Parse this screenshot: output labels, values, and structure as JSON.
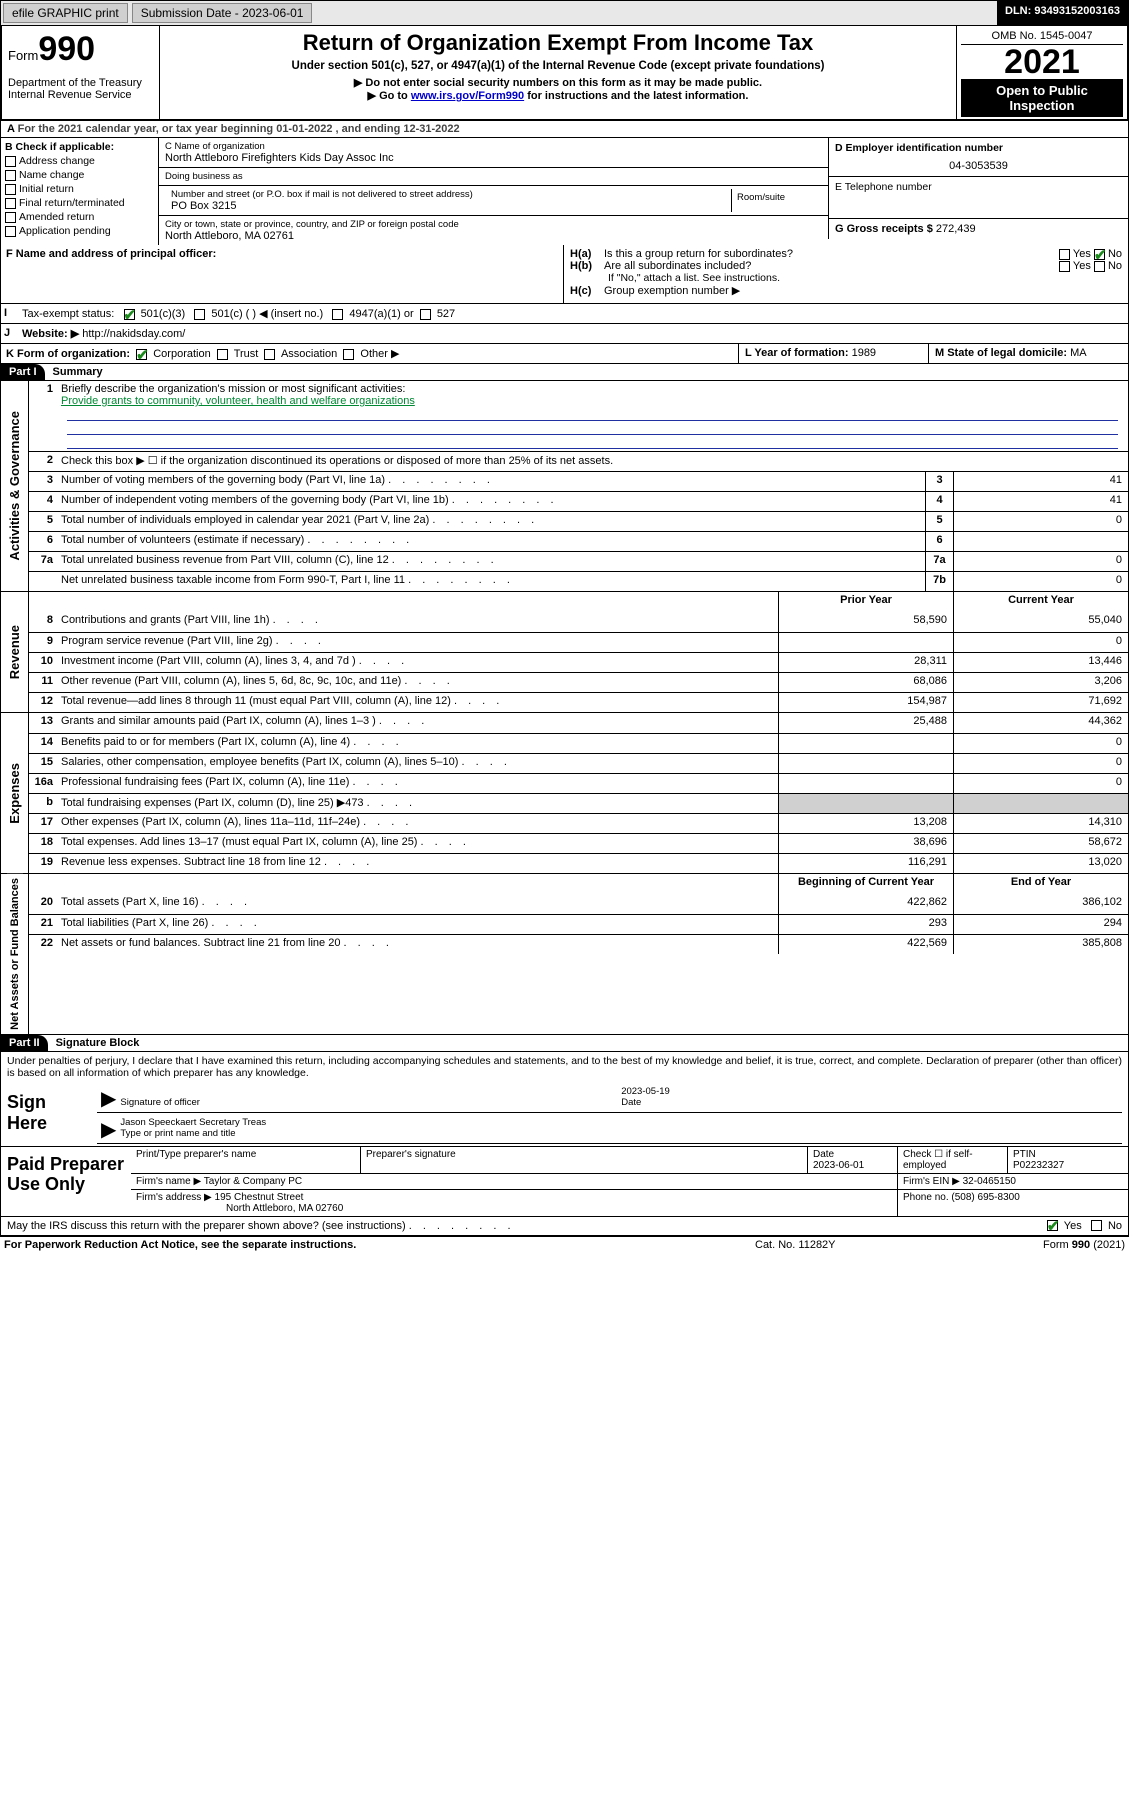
{
  "topbar": {
    "efile_label": "efile GRAPHIC print",
    "submission_label": "Submission Date - 2023-06-01",
    "dln_label": "DLN: 93493152003163"
  },
  "header": {
    "form_label": "Form",
    "form_number": "990",
    "title": "Return of Organization Exempt From Income Tax",
    "subtitle": "Under section 501(c), 527, or 4947(a)(1) of the Internal Revenue Code (except private foundations)",
    "note1": "▶ Do not enter social security numbers on this form as it may be made public.",
    "note2_pre": "▶ Go to ",
    "note2_link": "www.irs.gov/Form990",
    "note2_post": " for instructions and the latest information.",
    "dept": "Department of the Treasury",
    "irs": "Internal Revenue Service",
    "omb": "OMB No. 1545-0047",
    "year": "2021",
    "open": "Open to Public Inspection"
  },
  "rowA": "For the 2021 calendar year, or tax year beginning 01-01-2022   , and ending 12-31-2022",
  "boxB": {
    "label": "B Check if applicable:",
    "items": [
      "Address change",
      "Name change",
      "Initial return",
      "Final return/terminated",
      "Amended return",
      "Application pending"
    ]
  },
  "boxC": {
    "name_label": "C Name of organization",
    "name": "North Attleboro Firefighters Kids Day Assoc Inc",
    "dba_label": "Doing business as",
    "dba": "",
    "addr_label": "Number and street (or P.O. box if mail is not delivered to street address)",
    "room_label": "Room/suite",
    "addr": "PO Box 3215",
    "city_label": "City or town, state or province, country, and ZIP or foreign postal code",
    "city": "North Attleboro, MA  02761"
  },
  "boxD": {
    "label": "D Employer identification number",
    "value": "04-3053539"
  },
  "boxE": {
    "label": "E Telephone number",
    "value": ""
  },
  "boxG": {
    "label": "G Gross receipts $",
    "value": "272,439"
  },
  "boxF": {
    "label": "F  Name and address of principal officer:",
    "value": ""
  },
  "boxH": {
    "a_label": "Is this a group return for subordinates?",
    "a_yes": "Yes",
    "a_no": "No",
    "a_checked": "no",
    "b_label": "Are all subordinates included?",
    "b_yes": "Yes",
    "b_no": "No",
    "b_note": "If \"No,\" attach a list. See instructions.",
    "c_label": "Group exemption number ▶"
  },
  "boxI": {
    "label": "Tax-exempt status:",
    "opts": [
      "501(c)(3)",
      "501(c) (  ) ◀ (insert no.)",
      "4947(a)(1) or",
      "527"
    ],
    "checked": 0
  },
  "boxJ": {
    "label": "Website: ▶",
    "value": "http://nakidsday.com/"
  },
  "boxK": {
    "label": "K Form of organization:",
    "opts": [
      "Corporation",
      "Trust",
      "Association",
      "Other ▶"
    ],
    "checked": 0
  },
  "boxL": {
    "label": "L Year of formation:",
    "value": "1989"
  },
  "boxM": {
    "label": "M State of legal domicile:",
    "value": "MA"
  },
  "part1": {
    "tag": "Part I",
    "title": "Summary"
  },
  "summary": {
    "gov_label": "Activities & Governance",
    "rev_label": "Revenue",
    "exp_label": "Expenses",
    "net_label": "Net Assets or Fund Balances",
    "line1_label": "Briefly describe the organization's mission or most significant activities:",
    "line1_text": "Provide grants to community, volunteer, health and welfare organizations",
    "line2_label": "Check this box ▶ ☐  if the organization discontinued its operations or disposed of more than 25% of its net assets.",
    "rows_gov": [
      {
        "n": "3",
        "d": "Number of voting members of the governing body (Part VI, line 1a)",
        "box": "3",
        "v": "41"
      },
      {
        "n": "4",
        "d": "Number of independent voting members of the governing body (Part VI, line 1b)",
        "box": "4",
        "v": "41"
      },
      {
        "n": "5",
        "d": "Total number of individuals employed in calendar year 2021 (Part V, line 2a)",
        "box": "5",
        "v": "0"
      },
      {
        "n": "6",
        "d": "Total number of volunteers (estimate if necessary)",
        "box": "6",
        "v": ""
      },
      {
        "n": "7a",
        "d": "Total unrelated business revenue from Part VIII, column (C), line 12",
        "box": "7a",
        "v": "0"
      },
      {
        "n": "",
        "d": "Net unrelated business taxable income from Form 990-T, Part I, line 11",
        "box": "7b",
        "v": "0"
      }
    ],
    "col_prior": "Prior Year",
    "col_current": "Current Year",
    "col_begin": "Beginning of Current Year",
    "col_end": "End of Year",
    "rows_rev": [
      {
        "n": "8",
        "d": "Contributions and grants (Part VIII, line 1h)",
        "p": "58,590",
        "c": "55,040"
      },
      {
        "n": "9",
        "d": "Program service revenue (Part VIII, line 2g)",
        "p": "",
        "c": "0"
      },
      {
        "n": "10",
        "d": "Investment income (Part VIII, column (A), lines 3, 4, and 7d )",
        "p": "28,311",
        "c": "13,446"
      },
      {
        "n": "11",
        "d": "Other revenue (Part VIII, column (A), lines 5, 6d, 8c, 9c, 10c, and 11e)",
        "p": "68,086",
        "c": "3,206"
      },
      {
        "n": "12",
        "d": "Total revenue—add lines 8 through 11 (must equal Part VIII, column (A), line 12)",
        "p": "154,987",
        "c": "71,692"
      }
    ],
    "rows_exp": [
      {
        "n": "13",
        "d": "Grants and similar amounts paid (Part IX, column (A), lines 1–3 )",
        "p": "25,488",
        "c": "44,362"
      },
      {
        "n": "14",
        "d": "Benefits paid to or for members (Part IX, column (A), line 4)",
        "p": "",
        "c": "0"
      },
      {
        "n": "15",
        "d": "Salaries, other compensation, employee benefits (Part IX, column (A), lines 5–10)",
        "p": "",
        "c": "0"
      },
      {
        "n": "16a",
        "d": "Professional fundraising fees (Part IX, column (A), line 11e)",
        "p": "",
        "c": "0"
      },
      {
        "n": "b",
        "d": "Total fundraising expenses (Part IX, column (D), line 25) ▶473",
        "p": "shade",
        "c": "shade"
      },
      {
        "n": "17",
        "d": "Other expenses (Part IX, column (A), lines 11a–11d, 11f–24e)",
        "p": "13,208",
        "c": "14,310"
      },
      {
        "n": "18",
        "d": "Total expenses. Add lines 13–17 (must equal Part IX, column (A), line 25)",
        "p": "38,696",
        "c": "58,672"
      },
      {
        "n": "19",
        "d": "Revenue less expenses. Subtract line 18 from line 12",
        "p": "116,291",
        "c": "13,020"
      }
    ],
    "rows_net": [
      {
        "n": "20",
        "d": "Total assets (Part X, line 16)",
        "p": "422,862",
        "c": "386,102"
      },
      {
        "n": "21",
        "d": "Total liabilities (Part X, line 26)",
        "p": "293",
        "c": "294"
      },
      {
        "n": "22",
        "d": "Net assets or fund balances. Subtract line 21 from line 20",
        "p": "422,569",
        "c": "385,808"
      }
    ]
  },
  "part2": {
    "tag": "Part II",
    "title": "Signature Block"
  },
  "declaration": "Under penalties of perjury, I declare that I have examined this return, including accompanying schedules and statements, and to the best of my knowledge and belief, it is true, correct, and complete. Declaration of preparer (other than officer) is based on all information of which preparer has any knowledge.",
  "sign": {
    "here": "Sign Here",
    "sig_label": "Signature of officer",
    "date_label": "Date",
    "date_value": "2023-05-19",
    "name": "Jason Speeckaert  Secretary Treas",
    "name_label": "Type or print name and title"
  },
  "preparer": {
    "title": "Paid Preparer Use Only",
    "h1": "Print/Type preparer's name",
    "h2": "Preparer's signature",
    "h3": "Date",
    "h3v": "2023-06-01",
    "h4": "Check ☐ if self-employed",
    "h5": "PTIN",
    "h5v": "P02232327",
    "firm_name_l": "Firm's name    ▶",
    "firm_name": "Taylor & Company PC",
    "firm_ein_l": "Firm's EIN ▶",
    "firm_ein": "32-0465150",
    "firm_addr_l": "Firm's address ▶",
    "firm_addr1": "195 Chestnut Street",
    "firm_addr2": "North Attleboro, MA  02760",
    "phone_l": "Phone no.",
    "phone": "(508) 695-8300"
  },
  "may_irs": {
    "text": "May the IRS discuss this return with the preparer shown above? (see instructions)",
    "yes": "Yes",
    "no": "No",
    "checked": "yes"
  },
  "footer": {
    "left": "For Paperwork Reduction Act Notice, see the separate instructions.",
    "mid": "Cat. No. 11282Y",
    "right": "Form 990 (2021)"
  },
  "colors": {
    "link": "#0000cc",
    "check_green": "#1c8a1c",
    "shade": "#d0d0d0",
    "black": "#000000"
  }
}
